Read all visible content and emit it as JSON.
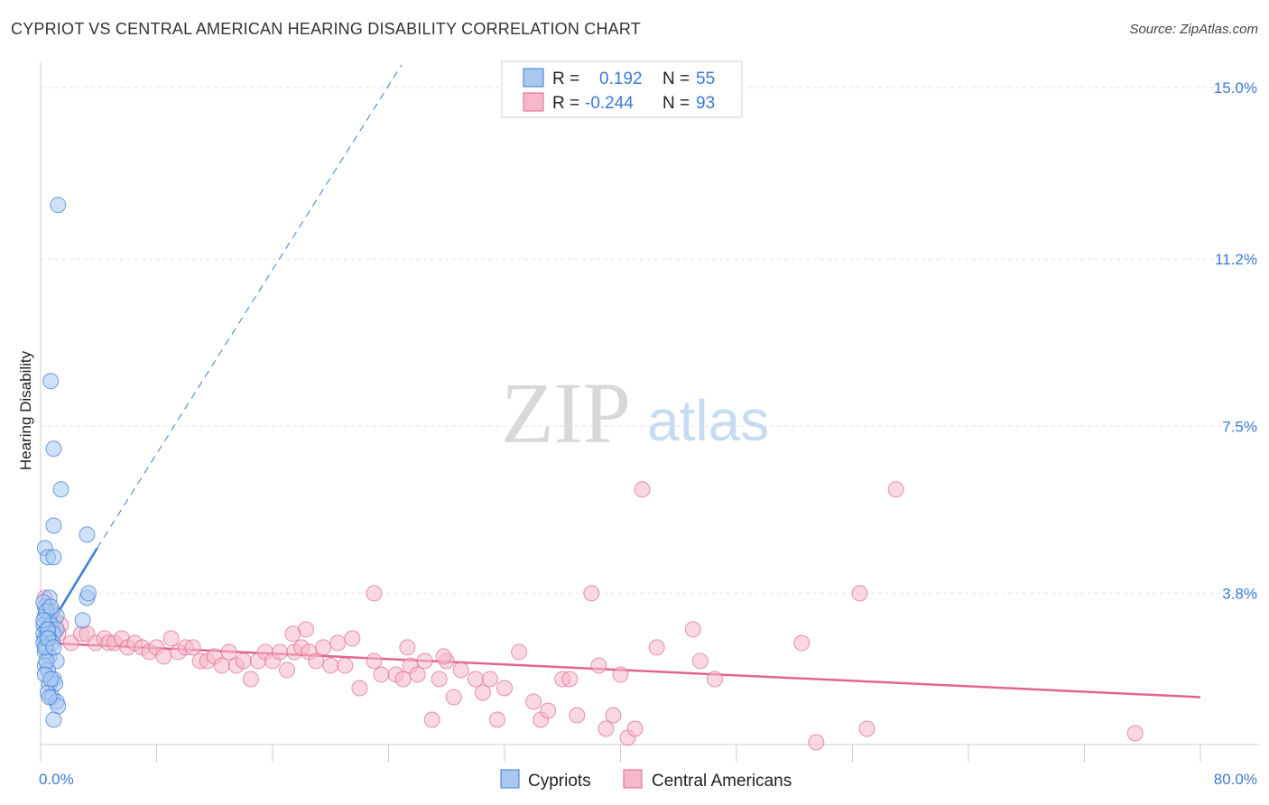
{
  "header": {
    "title": "CYPRIOT VS CENTRAL AMERICAN HEARING DISABILITY CORRELATION CHART",
    "source": "Source: ZipAtlas.com"
  },
  "watermark": {
    "zip": "ZIP",
    "atlas": "atlas"
  },
  "legend": {
    "rows": [
      {
        "r_label": "R =",
        "r_value": "0.192",
        "n_label": "N =",
        "n_value": "55",
        "color": "#a8c8f0"
      },
      {
        "r_label": "R =",
        "r_value": "-0.244",
        "n_label": "N =",
        "n_value": "93",
        "color": "#f5b8c8"
      }
    ]
  },
  "bottom_legend": [
    "Cypriots",
    "Central Americans"
  ],
  "chart_data": {
    "type": "scatter",
    "title": "CYPRIOT VS CENTRAL AMERICAN HEARING DISABILITY CORRELATION CHART",
    "xlabel": "",
    "ylabel": "Hearing Disability",
    "xlim": [
      0,
      80
    ],
    "ylim": [
      0,
      15.5
    ],
    "x_tick_labels": [
      "0.0%",
      "80.0%"
    ],
    "y_ticks": [
      3.8,
      7.5,
      11.2,
      15.0
    ],
    "y_tick_labels": [
      "3.8%",
      "7.5%",
      "11.2%",
      "15.0%"
    ],
    "colors": {
      "cypriots": "#3a7bd5",
      "cypriots_fill": "#a8c8f0",
      "central": "#e06690",
      "central_fill": "#f5b8c8"
    },
    "series": [
      {
        "name": "Cypriots",
        "R": 0.192,
        "N": 55,
        "trend": {
          "x": [
            0.3,
            3.9
          ],
          "y": [
            2.9,
            4.8
          ],
          "dashed_to": [
            24.9,
            15.5
          ]
        },
        "points": [
          [
            1.2,
            12.4
          ],
          [
            0.7,
            8.5
          ],
          [
            0.9,
            7.0
          ],
          [
            1.4,
            6.1
          ],
          [
            0.9,
            5.3
          ],
          [
            3.2,
            5.1
          ],
          [
            0.3,
            4.8
          ],
          [
            0.5,
            4.6
          ],
          [
            0.9,
            4.6
          ],
          [
            3.2,
            3.7
          ],
          [
            3.3,
            3.8
          ],
          [
            0.6,
            3.7
          ],
          [
            0.3,
            3.5
          ],
          [
            0.8,
            3.4
          ],
          [
            0.3,
            3.3
          ],
          [
            0.6,
            3.2
          ],
          [
            1.1,
            3.3
          ],
          [
            2.9,
            3.2
          ],
          [
            0.2,
            3.1
          ],
          [
            0.7,
            3.1
          ],
          [
            1.1,
            3.0
          ],
          [
            0.4,
            3.0
          ],
          [
            0.2,
            2.9
          ],
          [
            0.5,
            2.9
          ],
          [
            0.9,
            2.9
          ],
          [
            0.3,
            2.8
          ],
          [
            0.6,
            2.8
          ],
          [
            0.2,
            2.7
          ],
          [
            0.4,
            2.6
          ],
          [
            0.3,
            2.5
          ],
          [
            0.6,
            2.4
          ],
          [
            1.1,
            2.3
          ],
          [
            0.3,
            2.2
          ],
          [
            0.5,
            2.1
          ],
          [
            0.9,
            1.9
          ],
          [
            0.6,
            1.8
          ],
          [
            1.0,
            1.8
          ],
          [
            0.5,
            1.6
          ],
          [
            0.8,
            1.5
          ],
          [
            1.1,
            1.4
          ],
          [
            1.2,
            1.3
          ],
          [
            0.9,
            1.0
          ],
          [
            0.2,
            3.6
          ],
          [
            0.4,
            3.4
          ],
          [
            0.7,
            3.5
          ],
          [
            0.2,
            3.2
          ],
          [
            0.5,
            3.0
          ],
          [
            0.8,
            2.7
          ],
          [
            0.4,
            2.3
          ],
          [
            0.3,
            2.0
          ],
          [
            0.7,
            1.9
          ],
          [
            0.6,
            1.5
          ],
          [
            0.3,
            2.6
          ],
          [
            0.5,
            2.8
          ],
          [
            0.9,
            2.6
          ]
        ]
      },
      {
        "name": "Central Americans",
        "R": -0.244,
        "N": 93,
        "trend": {
          "x": [
            0.3,
            80.0
          ],
          "y": [
            2.7,
            1.5
          ]
        },
        "points": [
          [
            0.3,
            3.7
          ],
          [
            0.6,
            3.4
          ],
          [
            1.0,
            3.2
          ],
          [
            1.4,
            3.1
          ],
          [
            1.2,
            2.9
          ],
          [
            2.1,
            2.7
          ],
          [
            2.8,
            2.9
          ],
          [
            3.2,
            2.9
          ],
          [
            3.8,
            2.7
          ],
          [
            4.4,
            2.8
          ],
          [
            4.7,
            2.7
          ],
          [
            5.1,
            2.7
          ],
          [
            5.6,
            2.8
          ],
          [
            6.0,
            2.6
          ],
          [
            6.5,
            2.7
          ],
          [
            7.0,
            2.6
          ],
          [
            7.5,
            2.5
          ],
          [
            8.0,
            2.6
          ],
          [
            8.5,
            2.4
          ],
          [
            9.0,
            2.8
          ],
          [
            9.5,
            2.5
          ],
          [
            10.0,
            2.6
          ],
          [
            10.5,
            2.6
          ],
          [
            11.0,
            2.3
          ],
          [
            11.5,
            2.3
          ],
          [
            12.0,
            2.4
          ],
          [
            12.5,
            2.2
          ],
          [
            13.0,
            2.5
          ],
          [
            13.5,
            2.2
          ],
          [
            14.0,
            2.3
          ],
          [
            14.5,
            1.9
          ],
          [
            15.0,
            2.3
          ],
          [
            15.5,
            2.5
          ],
          [
            16.0,
            2.3
          ],
          [
            16.5,
            2.5
          ],
          [
            17.0,
            2.1
          ],
          [
            17.5,
            2.5
          ],
          [
            18.0,
            2.6
          ],
          [
            18.5,
            2.5
          ],
          [
            19.0,
            2.3
          ],
          [
            19.5,
            2.6
          ],
          [
            20.0,
            2.2
          ],
          [
            20.5,
            2.7
          ],
          [
            21.0,
            2.2
          ],
          [
            21.5,
            2.8
          ],
          [
            22.0,
            1.7
          ],
          [
            23.0,
            2.3
          ],
          [
            23.5,
            2.0
          ],
          [
            24.5,
            2.0
          ],
          [
            25.0,
            1.9
          ],
          [
            25.5,
            2.2
          ],
          [
            26.0,
            2.0
          ],
          [
            26.5,
            2.3
          ],
          [
            27.0,
            1.0
          ],
          [
            27.5,
            1.9
          ],
          [
            28.0,
            2.3
          ],
          [
            28.5,
            1.5
          ],
          [
            29.0,
            2.1
          ],
          [
            30.0,
            1.9
          ],
          [
            30.5,
            1.6
          ],
          [
            31.0,
            1.9
          ],
          [
            31.5,
            1.0
          ],
          [
            32.0,
            1.7
          ],
          [
            33.0,
            2.5
          ],
          [
            34.0,
            1.4
          ],
          [
            34.5,
            1.0
          ],
          [
            35.0,
            1.2
          ],
          [
            36.0,
            1.9
          ],
          [
            36.5,
            1.9
          ],
          [
            37.0,
            1.1
          ],
          [
            38.0,
            3.8
          ],
          [
            38.5,
            2.2
          ],
          [
            39.0,
            0.8
          ],
          [
            39.5,
            1.1
          ],
          [
            40.0,
            2.0
          ],
          [
            40.5,
            0.6
          ],
          [
            41.0,
            0.8
          ],
          [
            41.5,
            6.1
          ],
          [
            42.5,
            2.6
          ],
          [
            45.0,
            3.0
          ],
          [
            45.5,
            2.3
          ],
          [
            46.5,
            1.9
          ],
          [
            52.5,
            2.7
          ],
          [
            53.5,
            0.5
          ],
          [
            56.5,
            3.8
          ],
          [
            57.0,
            0.8
          ],
          [
            59.0,
            6.1
          ],
          [
            75.5,
            0.7
          ],
          [
            23.0,
            3.8
          ],
          [
            25.3,
            2.6
          ],
          [
            18.3,
            3.0
          ],
          [
            17.4,
            2.9
          ],
          [
            27.8,
            2.4
          ]
        ]
      }
    ]
  }
}
